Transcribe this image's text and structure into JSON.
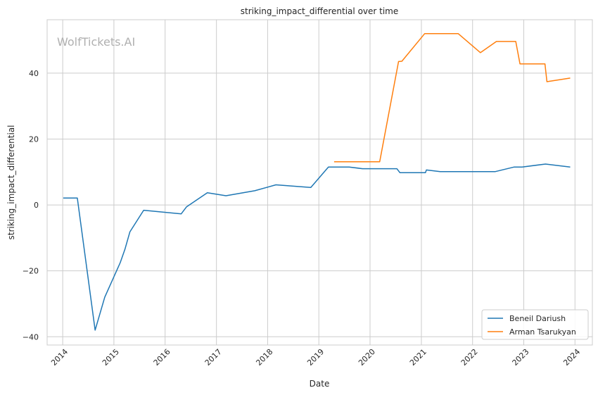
{
  "chart_data": {
    "type": "line",
    "title": "striking_impact_differential over time",
    "xlabel": "Date",
    "ylabel": "striking_impact_differential",
    "watermark": "WolfTickets.AI",
    "x_ticks": [
      "2014",
      "2015",
      "2016",
      "2017",
      "2018",
      "2019",
      "2020",
      "2021",
      "2022",
      "2023",
      "2024"
    ],
    "y_ticks": [
      -40,
      -20,
      0,
      20,
      40
    ],
    "y_tick_labels": [
      "−40",
      "−20",
      "0",
      "20",
      "40"
    ],
    "xlim": [
      "2013-09-12",
      "2024-05-04"
    ],
    "ylim": [
      -42.5,
      56.2
    ],
    "grid": true,
    "legend_position": "bottom-right",
    "series": [
      {
        "name": "Beneil Dariush",
        "color": "#1f77b4",
        "points": [
          [
            "2014-01-05",
            2.1
          ],
          [
            "2014-04-15",
            2.1
          ],
          [
            "2014-08-20",
            -38.0
          ],
          [
            "2014-10-28",
            -28.0
          ],
          [
            "2015-02-15",
            -17.5
          ],
          [
            "2015-03-20",
            -13.5
          ],
          [
            "2015-04-25",
            -8.2
          ],
          [
            "2015-08-01",
            -1.6
          ],
          [
            "2016-04-25",
            -2.7
          ],
          [
            "2016-06-01",
            -0.6
          ],
          [
            "2016-10-28",
            3.7
          ],
          [
            "2017-03-10",
            2.8
          ],
          [
            "2017-10-01",
            4.3
          ],
          [
            "2018-03-01",
            6.1
          ],
          [
            "2018-11-05",
            5.3
          ],
          [
            "2019-03-10",
            11.5
          ],
          [
            "2019-08-05",
            11.5
          ],
          [
            "2019-11-08",
            11.0
          ],
          [
            "2020-07-10",
            11.0
          ],
          [
            "2020-08-01",
            9.8
          ],
          [
            "2021-01-30",
            9.8
          ],
          [
            "2021-02-06",
            10.6
          ],
          [
            "2021-05-15",
            10.1
          ],
          [
            "2022-06-10",
            10.1
          ],
          [
            "2022-10-25",
            11.5
          ],
          [
            "2022-12-20",
            11.5
          ],
          [
            "2023-06-05",
            12.4
          ],
          [
            "2023-11-28",
            11.5
          ]
        ]
      },
      {
        "name": "Arman Tsarukyan",
        "color": "#ff7f0e",
        "points": [
          [
            "2019-04-20",
            13.1
          ],
          [
            "2020-03-10",
            13.1
          ],
          [
            "2020-07-22",
            43.5
          ],
          [
            "2020-08-15",
            43.6
          ],
          [
            "2021-01-25",
            52.0
          ],
          [
            "2021-09-20",
            52.0
          ],
          [
            "2022-02-26",
            46.2
          ],
          [
            "2022-06-20",
            49.6
          ],
          [
            "2022-11-05",
            49.6
          ],
          [
            "2022-12-05",
            42.8
          ],
          [
            "2023-06-01",
            42.8
          ],
          [
            "2023-06-15",
            37.4
          ],
          [
            "2023-11-28",
            38.5
          ]
        ]
      }
    ]
  }
}
